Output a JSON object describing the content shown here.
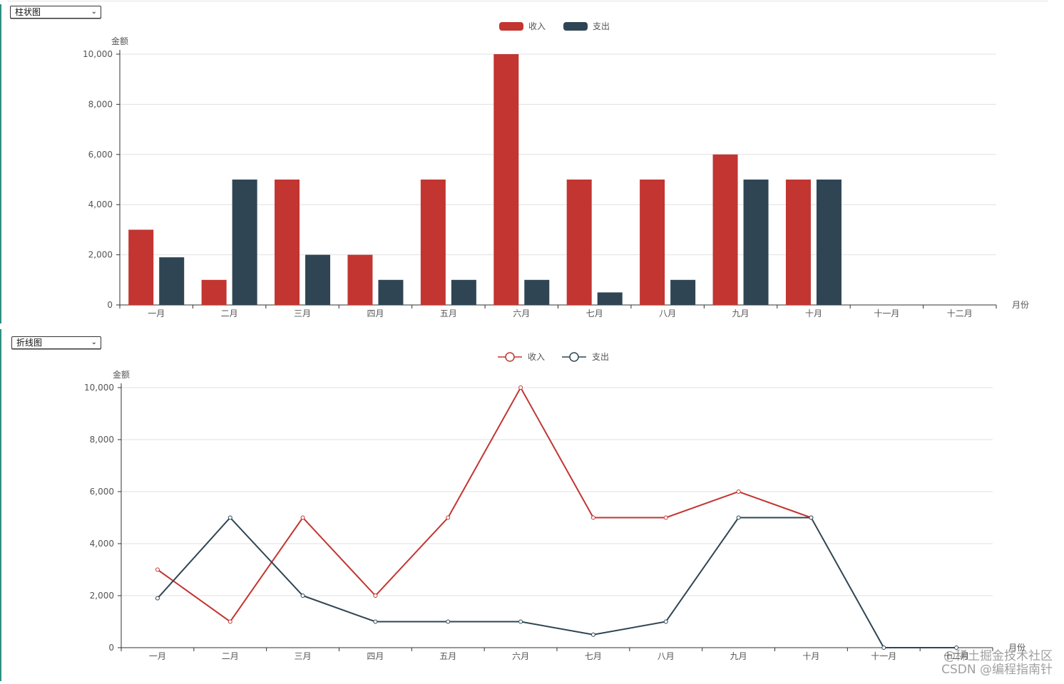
{
  "bar_selector": {
    "value": "柱状图"
  },
  "line_selector": {
    "value": "折线图"
  },
  "colors": {
    "income": "#c23531",
    "expense": "#2f4554",
    "axis": "#333333",
    "grid": "#e0e0e0",
    "label": "#555555"
  },
  "watermark": {
    "line1": "@稀土掘金技术社区",
    "line2": "CSDN @编程指南针"
  },
  "chart_data": [
    {
      "type": "bar",
      "legend_position": "top-center",
      "grid": true,
      "ylabel": "金额",
      "xlabel": "月份",
      "ylim": [
        0,
        10000
      ],
      "yticks": [
        "0",
        "2,000",
        "4,000",
        "6,000",
        "8,000",
        "10,000"
      ],
      "categories": [
        "一月",
        "二月",
        "三月",
        "四月",
        "五月",
        "六月",
        "七月",
        "八月",
        "九月",
        "十月",
        "十一月",
        "十二月"
      ],
      "series": [
        {
          "name": "收入",
          "values": [
            3000,
            1000,
            5000,
            2000,
            5000,
            10000,
            5000,
            5000,
            6000,
            5000,
            null,
            null
          ]
        },
        {
          "name": "支出",
          "values": [
            1900,
            5000,
            2000,
            1000,
            1000,
            1000,
            500,
            1000,
            5000,
            5000,
            null,
            null
          ]
        }
      ]
    },
    {
      "type": "line",
      "legend_position": "top-center",
      "grid": true,
      "ylabel": "金额",
      "xlabel": "月份",
      "ylim": [
        0,
        10000
      ],
      "yticks": [
        "0",
        "2,000",
        "4,000",
        "6,000",
        "8,000",
        "10,000"
      ],
      "categories": [
        "一月",
        "二月",
        "三月",
        "四月",
        "五月",
        "六月",
        "七月",
        "八月",
        "九月",
        "十月",
        "十一月",
        "十二月"
      ],
      "series": [
        {
          "name": "收入",
          "values": [
            3000,
            1000,
            5000,
            2000,
            5000,
            10000,
            5000,
            5000,
            6000,
            5000,
            null,
            null
          ]
        },
        {
          "name": "支出",
          "values": [
            1900,
            5000,
            2000,
            1000,
            1000,
            1000,
            500,
            1000,
            5000,
            5000,
            0,
            0
          ]
        }
      ]
    }
  ]
}
